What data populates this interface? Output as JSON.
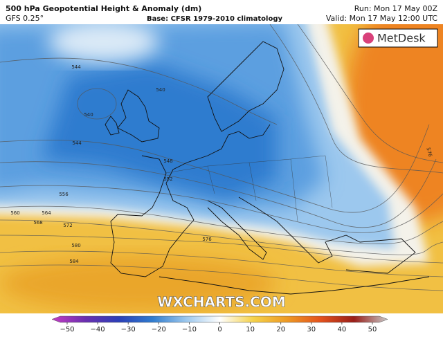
{
  "header": {
    "title": "500 hPa Geopotential Height & Anomaly (dm)",
    "model": "GFS 0.25°",
    "base": "Base: CFSR 1979-2010 climatology",
    "run": "Run: Mon 17 May 00Z",
    "valid": "Valid: Mon 17 May 12:00 UTC"
  },
  "logo": "MetDesk",
  "watermark": "WXCHARTS.COM",
  "contour_labels": [
    544,
    540,
    540,
    544,
    548,
    552,
    556,
    560,
    564,
    568,
    572,
    576,
    580,
    584,
    576
  ],
  "colorbar": {
    "lim": [
      -50,
      50
    ],
    "ticks": [
      {
        "value": -50,
        "label": "−50"
      },
      {
        "value": -40,
        "label": "−40"
      },
      {
        "value": -30,
        "label": "−30"
      },
      {
        "value": -20,
        "label": "−20"
      },
      {
        "value": -10,
        "label": "−10"
      },
      0,
      10,
      20,
      30,
      40,
      50
    ],
    "colors": [
      "#c43cc4",
      "#6a2fb0",
      "#2b3fb8",
      "#2f7ccf",
      "#9cc8ee",
      "#ffffff",
      "#f5d24a",
      "#ee9a24",
      "#e4521c",
      "#9a1e18",
      "#c8c8c8"
    ]
  }
}
